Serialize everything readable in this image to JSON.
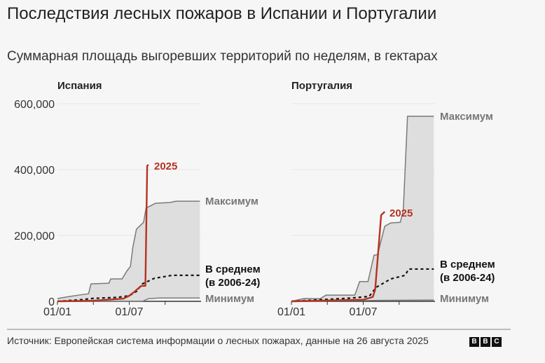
{
  "title": "Последствия лесных пожаров в Испании и Португалии",
  "subtitle": "Суммарная площадь выгоревших территорий по неделям, в гектарах",
  "source": "Источник: Европейская система информации о лесных пожарах, данные на 26 августа 2025",
  "logo": [
    "B",
    "B",
    "C"
  ],
  "colors": {
    "y2025": "#b63220",
    "max": "#7a7a7a",
    "band": "#dedede",
    "avg": "#111111"
  },
  "chart_data": [
    {
      "type": "line",
      "title": "Испания",
      "x_unit": "month of year (0 = 01/01)",
      "xlim": [
        0,
        12
      ],
      "ylim": [
        0,
        600000
      ],
      "yticks": [
        0,
        200000,
        400000,
        600000
      ],
      "ytick_labels": [
        "0",
        "200,000",
        "400,000",
        "600,000"
      ],
      "xticks": [
        0,
        3,
        6,
        9
      ],
      "xtick_labels": [
        "01/01",
        "",
        "01/07",
        ""
      ],
      "series": [
        {
          "name": "Максимум",
          "key": "max",
          "x": [
            0,
            1.05,
            1.8,
            2.6,
            2.8,
            4.3,
            4.45,
            5.4,
            5.8,
            6.1,
            6.3,
            6.6,
            7.2,
            7.4,
            8.2,
            9.4,
            9.9,
            11.9
          ],
          "y": [
            8500,
            15000,
            19000,
            23000,
            53000,
            55000,
            68000,
            68000,
            92000,
            106000,
            164000,
            219000,
            240000,
            283000,
            298000,
            300000,
            304000,
            304000
          ]
        },
        {
          "name": "Минимум",
          "key": "min",
          "x": [
            0,
            7.1,
            7.6,
            8.5,
            11.9
          ],
          "y": [
            0,
            0,
            8000,
            10000,
            10000
          ]
        },
        {
          "name": "В среднем",
          "name2": "(в 2006-24)",
          "key": "avg",
          "x": [
            0,
            2,
            3,
            5,
            6,
            6.6,
            7.1,
            8.1,
            9.6,
            11.9
          ],
          "y": [
            0,
            5000,
            9000,
            12000,
            17000,
            30000,
            53000,
            70000,
            79000,
            79000
          ]
        },
        {
          "name": "2025",
          "key": "y2025",
          "x": [
            0,
            3,
            5.5,
            6,
            6.4,
            7.0,
            7.35,
            7.5,
            7.6
          ],
          "y": [
            0,
            2000,
            8000,
            17000,
            28000,
            47000,
            47000,
            411000,
            415000
          ]
        }
      ]
    },
    {
      "type": "line",
      "title": "Португалия",
      "x_unit": "month of year (0 = 01/01)",
      "xlim": [
        0,
        12
      ],
      "ylim": [
        0,
        600000
      ],
      "yticks": [
        0,
        200000,
        400000,
        600000
      ],
      "xticks": [
        0,
        3,
        6,
        9
      ],
      "xtick_labels": [
        "01/01",
        "",
        "01/07",
        ""
      ],
      "series": [
        {
          "name": "Максимум",
          "key": "max",
          "x": [
            0,
            1.05,
            2.4,
            2.9,
            5.3,
            5.7,
            6.4,
            6.9,
            7.2,
            7.8,
            8.3,
            9.1,
            9.35,
            9.7,
            11.9
          ],
          "y": [
            0,
            8500,
            8000,
            19000,
            19000,
            60000,
            60000,
            140000,
            142000,
            228000,
            238000,
            240000,
            277000,
            562000,
            562000
          ]
        },
        {
          "name": "Минимум",
          "key": "min",
          "x": [
            0,
            7.5,
            11.9
          ],
          "y": [
            0,
            3000,
            4000
          ]
        },
        {
          "name": "В среднем",
          "name2": "(в 2006-24)",
          "key": "avg",
          "x": [
            0,
            5,
            6.5,
            7.1,
            8.3,
            9.5,
            9.8,
            11.9
          ],
          "y": [
            0,
            10000,
            15000,
            43000,
            68000,
            79000,
            98000,
            98000
          ]
        },
        {
          "name": "2025",
          "key": "y2025",
          "x": [
            0,
            6,
            6.8,
            7.0,
            7.5,
            7.8
          ],
          "y": [
            0,
            5000,
            13000,
            36000,
            262000,
            272000
          ]
        }
      ]
    }
  ]
}
